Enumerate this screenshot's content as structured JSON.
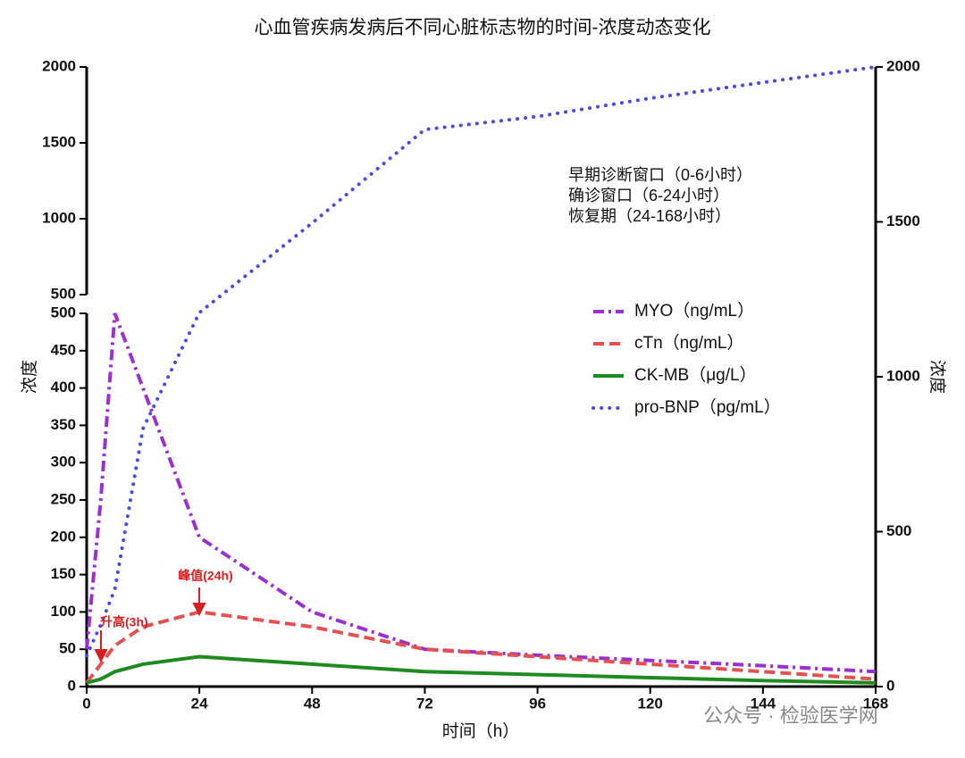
{
  "chart_data": {
    "type": "line",
    "title": "心血管疾病发病后不同心脏标志物的时间-浓度动态变化",
    "x_label": "时间（h）",
    "y_label": "浓度",
    "y2_label": "浓度",
    "x": [
      0,
      3,
      6,
      12,
      24,
      48,
      72,
      96,
      120,
      144,
      168
    ],
    "xlim": [
      0,
      168
    ],
    "xticks": [
      0,
      24,
      48,
      72,
      96,
      120,
      144,
      168
    ],
    "ylim": [
      0,
      500
    ],
    "yticks": [
      0,
      50,
      100,
      150,
      200,
      250,
      300,
      350,
      400,
      450,
      500
    ],
    "ylim_upper": [
      500,
      2000
    ],
    "yticks_upper": [
      500,
      1000,
      1500,
      2000
    ],
    "y2lim": [
      0,
      2000
    ],
    "y2ticks": [
      0,
      500,
      1000,
      1500,
      2000
    ],
    "series": [
      {
        "name": "MYO（ng/mL）",
        "color": "#9b30d0",
        "dash": "dashdot",
        "values": [
          50,
          250,
          500,
          400,
          200,
          100,
          50,
          42,
          35,
          28,
          20
        ]
      },
      {
        "name": "cTn（ng/mL）",
        "color": "#e25252",
        "dash": "dashed",
        "values": [
          5,
          30,
          55,
          80,
          100,
          80,
          50,
          40,
          30,
          20,
          10
        ]
      },
      {
        "name": "CK-MB（μg/L）",
        "color": "#1f8a1f",
        "dash": "solid",
        "values": [
          5,
          10,
          20,
          30,
          40,
          30,
          20,
          16,
          12,
          8,
          5
        ]
      },
      {
        "name": "pro-BNP（pg/mL）",
        "color": "#4b4bdc",
        "dash": "dotted",
        "axis": "y2",
        "values": [
          100,
          200,
          314,
          833,
          1207,
          1496,
          1798,
          1840,
          1899,
          1950,
          2000
        ]
      }
    ],
    "annotations": [
      "升高(3h)",
      "峰值(24h)"
    ],
    "note": [
      "早期诊断窗口（0-6小时）",
      "确诊窗口（6-24小时）",
      "恢复期（24-168小时）"
    ],
    "watermark": "公众号 · 检验医学网"
  }
}
